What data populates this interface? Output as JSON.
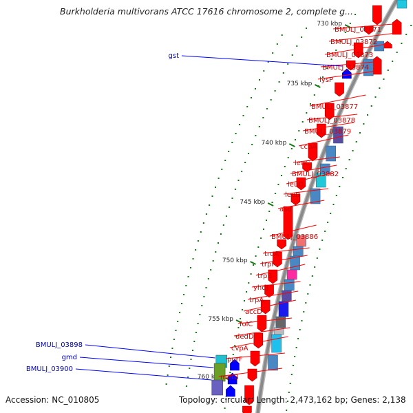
{
  "title": "Burkholderia multivorans ATCC 17616 chromosome 2, complete g...",
  "footer": {
    "accession": "Accession: NC_010805",
    "topology": "Topology: circular; Length: 2,473,162 bp; Genes: 2,138"
  },
  "colors": {
    "forward_gene": "#ff0000",
    "reverse_gene": "#0000ff",
    "forward_label": "#cc0000",
    "reverse_label": "#0000aa",
    "tick": "#117711",
    "backbone": "#8a8a8a"
  },
  "scale": [
    {
      "label": "730 kbp"
    },
    {
      "label": "735 kbp"
    },
    {
      "label": "740 kbp"
    },
    {
      "label": "745 kbp"
    },
    {
      "label": "750 kbp"
    },
    {
      "label": "755 kbp"
    },
    {
      "label": "760 kbp"
    }
  ],
  "forward_labels": [
    "BMULJ_03871",
    "BMULJ_03872",
    "BMULJ_03873",
    "BMULJ_03874",
    "lysP",
    "BMULJ_03877",
    "BMULJ_03878",
    "BMULJ_03879",
    "ccpA",
    "leuC",
    "BMULJ_03882",
    "leuD",
    "leuB",
    "asd",
    "BMULJ_03886",
    "truA",
    "trpF",
    "trpB",
    "yhdJ",
    "trpA",
    "accD",
    "folC",
    "dedD",
    "cvpA",
    "purF",
    "metB"
  ],
  "reverse_labels": [
    "gst",
    "BMULJ_03898",
    "gmd",
    "BMULJ_03900"
  ]
}
